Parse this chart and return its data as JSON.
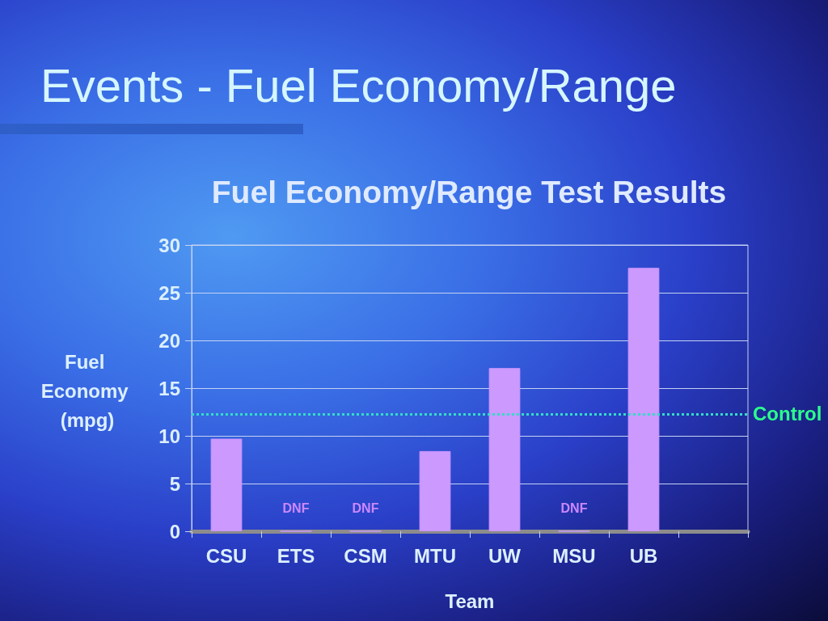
{
  "chart_data": {
    "type": "bar",
    "title": "Events - Fuel Economy/Range",
    "subtitle": "Fuel Economy/Range Test Results",
    "xlabel": "Team",
    "ylabel": "Fuel Economy (mpg)",
    "categories": [
      "CSU",
      "ETS",
      "CSM",
      "MTU",
      "UW",
      "MSU",
      "UB",
      null
    ],
    "values": [
      9.7,
      0,
      0,
      8.4,
      17.1,
      0,
      27.6,
      null
    ],
    "value_labels": [
      null,
      "DNF",
      "DNF",
      null,
      null,
      "DNF",
      null,
      null
    ],
    "color": "#cc99ff",
    "ylim": [
      0,
      30
    ],
    "yticks": [
      0,
      5,
      10,
      15,
      20,
      25,
      30
    ],
    "grid": "y",
    "ref_lines": [
      {
        "axis": "y",
        "value": 12.3,
        "label": "Control",
        "color": "#33dcc8",
        "line_style": "dotted"
      }
    ]
  }
}
